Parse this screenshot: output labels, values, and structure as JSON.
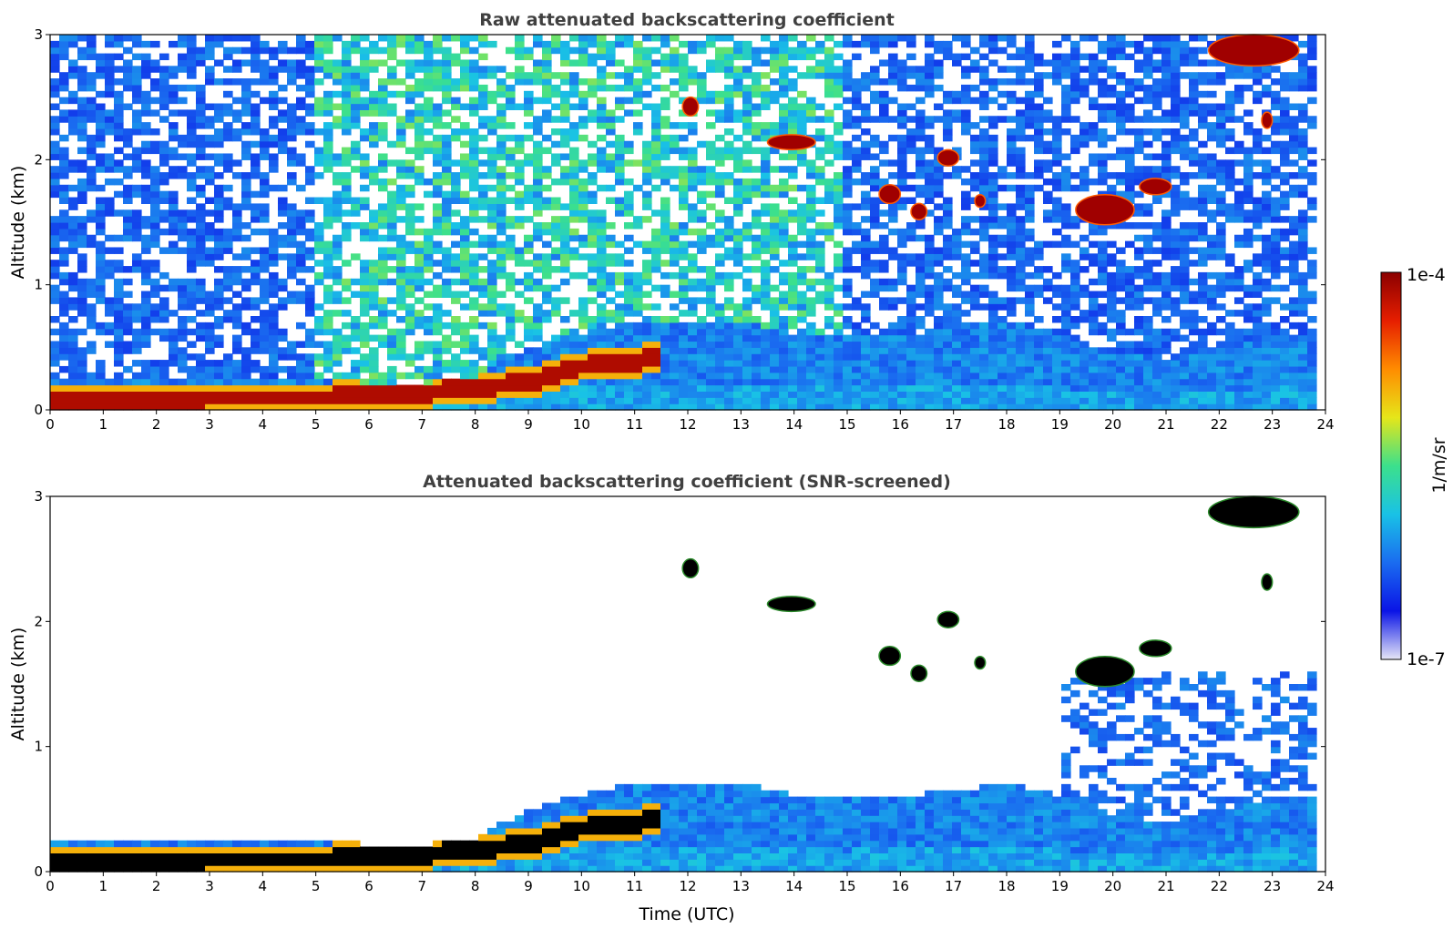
{
  "chart_data": [
    {
      "type": "heatmap",
      "title": "Raw attenuated backscattering coefficient",
      "xlabel": "",
      "ylabel": "Altitude (km)",
      "xlim": [
        0,
        24
      ],
      "ylim": [
        0,
        3
      ],
      "x_ticks": [
        "0",
        "1",
        "2",
        "3",
        "4",
        "5",
        "6",
        "7",
        "8",
        "9",
        "10",
        "11",
        "12",
        "13",
        "14",
        "15",
        "16",
        "17",
        "18",
        "19",
        "20",
        "21",
        "22",
        "23",
        "24"
      ],
      "y_ticks": [
        "0",
        "1",
        "2",
        "3"
      ],
      "boundary_layer": {
        "time_utc": [
          0,
          1,
          2,
          3,
          4,
          5,
          6,
          7,
          8,
          9,
          10,
          11,
          12,
          13,
          14,
          15,
          16,
          17,
          18,
          19,
          20,
          21,
          22,
          23,
          23.8
        ],
        "aerosol_top_km": [
          0.25,
          0.25,
          0.26,
          0.27,
          0.27,
          0.26,
          0.22,
          0.22,
          0.26,
          0.5,
          0.62,
          0.72,
          0.7,
          0.72,
          0.62,
          0.58,
          0.6,
          0.65,
          0.7,
          0.62,
          0.45,
          0.4,
          0.5,
          0.6,
          0.62
        ]
      },
      "surface_layer": {
        "time_utc": [
          0,
          2,
          4,
          5,
          6,
          7,
          8,
          9,
          10,
          11,
          11.5
        ],
        "altitude_km": [
          0.08,
          0.09,
          0.1,
          0.1,
          0.12,
          0.14,
          0.18,
          0.22,
          0.35,
          0.38,
          0.45
        ]
      },
      "clouds": [
        {
          "t0": 11.9,
          "t1": 12.2,
          "z0": 2.35,
          "z1": 2.5
        },
        {
          "t0": 13.5,
          "t1": 14.4,
          "z0": 2.08,
          "z1": 2.2
        },
        {
          "t0": 15.6,
          "t1": 16.0,
          "z0": 1.65,
          "z1": 1.8
        },
        {
          "t0": 16.2,
          "t1": 16.5,
          "z0": 1.52,
          "z1": 1.65
        },
        {
          "t0": 16.7,
          "t1": 17.1,
          "z0": 1.95,
          "z1": 2.08
        },
        {
          "t0": 17.4,
          "t1": 17.6,
          "z0": 1.62,
          "z1": 1.72
        },
        {
          "t0": 19.3,
          "t1": 20.4,
          "z0": 1.48,
          "z1": 1.72
        },
        {
          "t0": 20.5,
          "t1": 21.1,
          "z0": 1.72,
          "z1": 1.85
        },
        {
          "t0": 21.8,
          "t1": 23.5,
          "z0": 2.75,
          "z1": 3.0
        },
        {
          "t0": 22.8,
          "t1": 23.0,
          "z0": 2.25,
          "z1": 2.38
        }
      ]
    },
    {
      "type": "heatmap",
      "title": "Attenuated backscattering coefficient (SNR-screened)",
      "xlabel": "Time (UTC)",
      "ylabel": "Altitude (km)",
      "xlim": [
        0,
        24
      ],
      "ylim": [
        0,
        3
      ],
      "x_ticks": [
        "0",
        "1",
        "2",
        "3",
        "4",
        "5",
        "6",
        "7",
        "8",
        "9",
        "10",
        "11",
        "12",
        "13",
        "14",
        "15",
        "16",
        "17",
        "18",
        "19",
        "20",
        "21",
        "22",
        "23",
        "24"
      ],
      "y_ticks": [
        "0",
        "1",
        "2",
        "3"
      ]
    }
  ],
  "colorbar": {
    "label": "1/m/sr",
    "max_label": "1e-4",
    "min_label": "1e-7",
    "scale": "log",
    "colormap": [
      "#e6e6f7",
      "#0a14e6",
      "#1a6cf0",
      "#19c2e6",
      "#3ce08c",
      "#e6e619",
      "#ff8c00",
      "#e61e00",
      "#8b0000"
    ]
  }
}
